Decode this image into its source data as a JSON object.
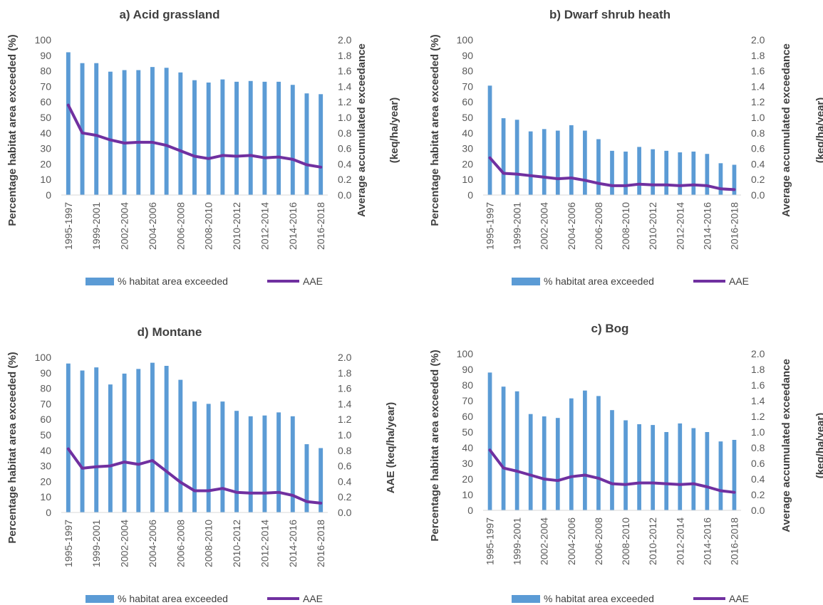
{
  "colors": {
    "bar": "#5b9bd5",
    "line": "#7030a0",
    "axis": "#d9d9d9",
    "text": "#595959"
  },
  "chart_data": [
    {
      "panel": "a",
      "type": "bar",
      "title": "a) Acid grassland",
      "ylabel": "Percentage habitat area exceeded (%)",
      "y2label_lines": [
        "Average accumulated exceedance",
        "(keq/ha/year)"
      ],
      "ylim": [
        0,
        100
      ],
      "y2lim": [
        0,
        2.0
      ],
      "yticks": [
        "0",
        "10",
        "20",
        "30",
        "40",
        "50",
        "60",
        "70",
        "80",
        "90",
        "100"
      ],
      "y2ticks": [
        "0.0",
        "0.2",
        "0.4",
        "0.6",
        "0.8",
        "1.0",
        "1.2",
        "1.4",
        "1.6",
        "1.8",
        "2.0"
      ],
      "tick_labels": [
        "1995-1997",
        "1999-2001",
        "2002-2004",
        "2004-2006",
        "2006-2008",
        "2008-2010",
        "2010-2012",
        "2012-2014",
        "2014-2016",
        "2016-2018"
      ],
      "legend": [
        "% habitat area exceeded",
        "AAE"
      ],
      "series": [
        {
          "name": "% habitat area exceeded",
          "type": "bar",
          "values": [
            92,
            85,
            85,
            79.5,
            80.5,
            80.5,
            82.5,
            82,
            79,
            74,
            72.5,
            74.5,
            73,
            73.5,
            73,
            73,
            71,
            65.5,
            65
          ]
        },
        {
          "name": "AAE",
          "type": "line",
          "axis": "right",
          "values": [
            1.16,
            0.8,
            0.77,
            0.71,
            0.67,
            0.68,
            0.68,
            0.64,
            0.57,
            0.5,
            0.47,
            0.51,
            0.5,
            0.51,
            0.48,
            0.49,
            0.46,
            0.39,
            0.36
          ]
        }
      ]
    },
    {
      "panel": "b",
      "type": "bar",
      "title": "b) Dwarf shrub heath",
      "ylabel": "Percentage habitat area exceeded (%)",
      "y2label_lines": [
        "Average accumulated exceedance",
        "(keq/ha/year)"
      ],
      "ylim": [
        0,
        100
      ],
      "y2lim": [
        0,
        2.0
      ],
      "yticks": [
        "0",
        "10",
        "20",
        "30",
        "40",
        "50",
        "60",
        "70",
        "80",
        "90",
        "100"
      ],
      "y2ticks": [
        "0.0",
        "0.2",
        "0.4",
        "0.6",
        "0.8",
        "1.0",
        "1.2",
        "1.4",
        "1.6",
        "1.8",
        "2.0"
      ],
      "tick_labels": [
        "1995-1997",
        "1999-2001",
        "2002-2004",
        "2004-2006",
        "2006-2008",
        "2008-2010",
        "2010-2012",
        "2012-2014",
        "2014-2016",
        "2016-2018"
      ],
      "legend": [
        "% habitat area exceeded",
        "AAE"
      ],
      "series": [
        {
          "name": "% habitat area exceeded",
          "type": "bar",
          "values": [
            70.5,
            49.5,
            48.5,
            41,
            42.5,
            41.5,
            45,
            41.5,
            36,
            28.5,
            28,
            31,
            29.5,
            28.5,
            27.5,
            28,
            26.5,
            20.5,
            19.5
          ]
        },
        {
          "name": "AAE",
          "type": "line",
          "axis": "right",
          "values": [
            0.48,
            0.28,
            0.27,
            0.25,
            0.23,
            0.21,
            0.22,
            0.19,
            0.15,
            0.12,
            0.12,
            0.14,
            0.13,
            0.13,
            0.12,
            0.13,
            0.12,
            0.08,
            0.07
          ]
        }
      ]
    },
    {
      "panel": "d",
      "type": "bar",
      "title": "d) Montane",
      "ylabel": "Percentage habitat area exceeded (%)",
      "y2label_lines": [
        "AAE (keq/ha/year)"
      ],
      "ylim": [
        0,
        100
      ],
      "y2lim": [
        0,
        2.0
      ],
      "yticks": [
        "0",
        "10",
        "20",
        "30",
        "40",
        "50",
        "60",
        "70",
        "80",
        "90",
        "100"
      ],
      "y2ticks": [
        "0.0",
        "0.2",
        "0.4",
        "0.6",
        "0.8",
        "1.0",
        "1.2",
        "1.4",
        "1.6",
        "1.8",
        "2.0"
      ],
      "tick_labels": [
        "1995-1997",
        "1999-2001",
        "2002-2004",
        "2004-2006",
        "2006-2008",
        "2008-2010",
        "2010-2012",
        "2012-2014",
        "2014-2016",
        "2016-2018"
      ],
      "legend": [
        "% habitat area exceeded",
        "AAE"
      ],
      "series": [
        {
          "name": "% habitat area exceeded",
          "type": "bar",
          "values": [
            96,
            91.5,
            93.5,
            82.5,
            89.5,
            92.5,
            96.5,
            94.5,
            85.5,
            71.5,
            70,
            71.5,
            65.5,
            62,
            62.5,
            64.5,
            62,
            44,
            41.5
          ]
        },
        {
          "name": "AAE",
          "type": "line",
          "axis": "right",
          "values": [
            0.82,
            0.57,
            0.59,
            0.6,
            0.65,
            0.62,
            0.67,
            0.53,
            0.39,
            0.28,
            0.28,
            0.31,
            0.26,
            0.25,
            0.25,
            0.26,
            0.22,
            0.14,
            0.12
          ]
        }
      ]
    },
    {
      "panel": "c",
      "type": "bar",
      "title": "c) Bog",
      "ylabel": "Percentage habitat area exceeded (%)",
      "y2label_lines": [
        "Average accumulated exceedance",
        "(keq/ha/year)"
      ],
      "ylim": [
        0,
        100
      ],
      "y2lim": [
        0,
        2.0
      ],
      "yticks": [
        "0",
        "10",
        "20",
        "30",
        "40",
        "50",
        "60",
        "70",
        "80",
        "90",
        "100"
      ],
      "y2ticks": [
        "0.0",
        "0.2",
        "0.4",
        "0.6",
        "0.8",
        "1.0",
        "1.2",
        "1.4",
        "1.6",
        "1.8",
        "2.0"
      ],
      "tick_labels": [
        "1995-1997",
        "1999-2001",
        "2002-2004",
        "2004-2006",
        "2006-2008",
        "2008-2010",
        "2010-2012",
        "2012-2014",
        "2014-2016",
        "2016-2018"
      ],
      "legend": [
        "% habitat area exceeded",
        "AAE"
      ],
      "series": [
        {
          "name": "% habitat area exceeded",
          "type": "bar",
          "values": [
            88,
            79,
            76,
            61.5,
            60,
            59,
            71.5,
            76.5,
            73,
            64,
            57.5,
            55,
            54.5,
            50,
            55.5,
            52.5,
            50,
            44,
            45
          ]
        },
        {
          "name": "AAE",
          "type": "line",
          "axis": "right",
          "values": [
            0.77,
            0.54,
            0.5,
            0.45,
            0.4,
            0.38,
            0.43,
            0.45,
            0.41,
            0.34,
            0.33,
            0.35,
            0.35,
            0.34,
            0.33,
            0.34,
            0.3,
            0.25,
            0.23
          ]
        }
      ]
    }
  ]
}
